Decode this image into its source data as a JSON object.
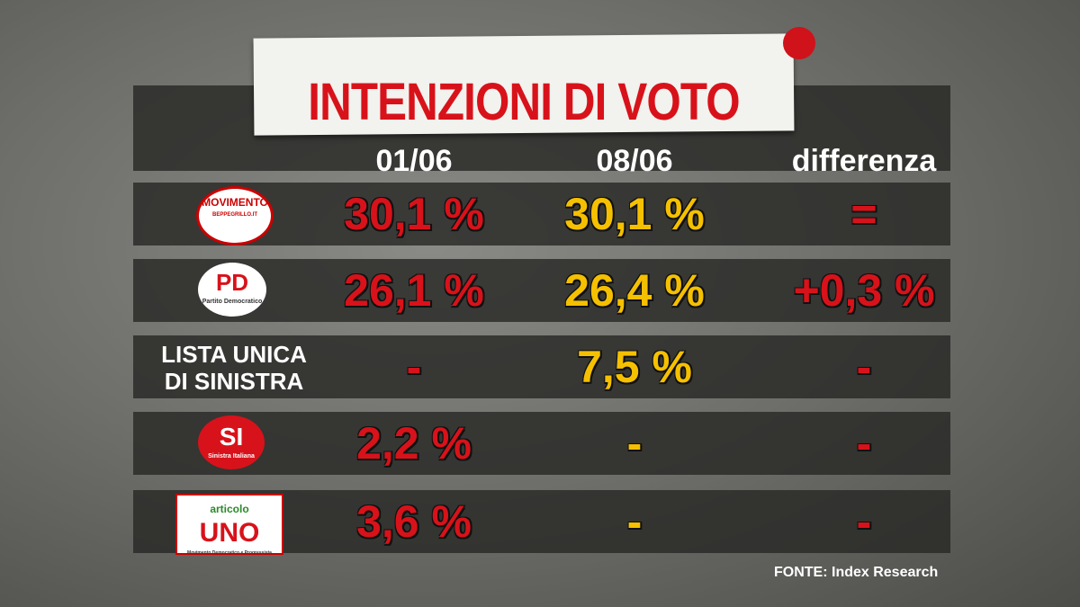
{
  "header": {
    "title": "INTENZIONI DI VOTO"
  },
  "table": {
    "columns": [
      "01/06",
      "08/06",
      "differenza"
    ],
    "rows": [
      {
        "logo": [
          "MOVIMENTO",
          "BEPPEGRILLO.IT"
        ],
        "cells": [
          "30,1 %",
          "30,1 %",
          "="
        ]
      },
      {
        "logo": [
          "PD",
          "Partito Democratico"
        ],
        "cells": [
          "26,1 %",
          "26,4 %",
          "+0,3 %"
        ]
      },
      {
        "label": [
          "LISTA UNICA",
          "DI SINISTRA"
        ],
        "cells": [
          "-",
          "7,5 %",
          "-"
        ]
      },
      {
        "logo": [
          "SI",
          "Sinistra Italiana"
        ],
        "cells": [
          "2,2 %",
          "-",
          "-"
        ]
      },
      {
        "logo": [
          "articolo",
          "UNO",
          "Movimento Democratico e Progressista"
        ],
        "cells": [
          "3,6 %",
          "-",
          "-"
        ]
      }
    ]
  },
  "footer": {
    "source": "FONTE:  Index Research"
  }
}
